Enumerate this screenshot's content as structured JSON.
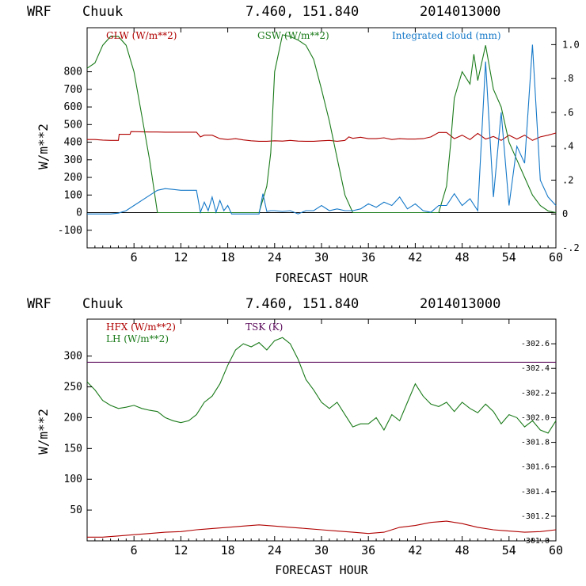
{
  "chart_data": [
    {
      "type": "line",
      "header": {
        "model": "WRF",
        "station": "Chuuk",
        "coords": "7.460, 151.840",
        "init": "2014013000"
      },
      "xlabel": "FORECAST HOUR",
      "ylabel": "W/m**2",
      "xlim": [
        0,
        60
      ],
      "ylim": [
        -200,
        1050
      ],
      "y2lim": [
        -0.2,
        1.1
      ],
      "xticks": [
        6,
        12,
        18,
        24,
        30,
        36,
        42,
        48,
        54,
        60
      ],
      "yticks": [
        -100,
        0,
        100,
        200,
        300,
        400,
        500,
        600,
        700,
        800
      ],
      "y2ticks": [
        "-.2",
        "0",
        ".2",
        ".4",
        ".6",
        ".8",
        "1.0"
      ],
      "y2tick_values": [
        -0.2,
        0,
        0.2,
        0.4,
        0.6,
        0.8,
        1.0
      ],
      "series": [
        {
          "name": "GLW (W/m**2)",
          "axis": "left",
          "color": "#b00000",
          "x": [
            0,
            1,
            2,
            3,
            4,
            4.1,
            5.5,
            5.6,
            8,
            9,
            10,
            11,
            12,
            13,
            14,
            14.5,
            15,
            16,
            17,
            18,
            19,
            20,
            21,
            22,
            23,
            24,
            25,
            26,
            27,
            28,
            29,
            30,
            31,
            32,
            33,
            33.5,
            34,
            35,
            36,
            37,
            38,
            39,
            40,
            41,
            42,
            43,
            43.5,
            44,
            45,
            46,
            47,
            48,
            49,
            50,
            51,
            52,
            53,
            54,
            55,
            56,
            57,
            58,
            59,
            60
          ],
          "values": [
            415,
            415,
            412,
            410,
            410,
            445,
            445,
            460,
            458,
            458,
            457,
            457,
            457,
            457,
            457,
            430,
            440,
            440,
            420,
            415,
            420,
            413,
            408,
            405,
            405,
            408,
            406,
            410,
            406,
            405,
            405,
            408,
            410,
            405,
            410,
            430,
            422,
            428,
            420,
            420,
            425,
            415,
            420,
            418,
            418,
            420,
            425,
            430,
            455,
            455,
            420,
            440,
            415,
            450,
            418,
            432,
            410,
            440,
            418,
            440,
            410,
            430,
            440,
            452
          ]
        },
        {
          "name": "GSW (W/m**2)",
          "axis": "left",
          "color": "#1a7a1a",
          "x": [
            0,
            1,
            2,
            3,
            4,
            5,
            6,
            7,
            8,
            9,
            10,
            11,
            12,
            13,
            14,
            15,
            16,
            17,
            18,
            19,
            20,
            21,
            22,
            23,
            23.5,
            24,
            25,
            26,
            27,
            28,
            29,
            30,
            31,
            32,
            33,
            34,
            35,
            36,
            37,
            38,
            39,
            40,
            41,
            42,
            43,
            44,
            44.5,
            45,
            46,
            46.5,
            47,
            48,
            49,
            49.5,
            50,
            51,
            52,
            53,
            54,
            55,
            56,
            57,
            58,
            59,
            60
          ],
          "values": [
            820,
            850,
            950,
            1000,
            1000,
            950,
            800,
            550,
            300,
            0,
            0,
            0,
            0,
            0,
            0,
            0,
            0,
            0,
            0,
            0,
            0,
            0,
            0,
            150,
            340,
            800,
            1010,
            1000,
            980,
            950,
            870,
            700,
            520,
            310,
            100,
            0,
            0,
            0,
            0,
            0,
            0,
            0,
            0,
            0,
            0,
            0,
            0,
            0,
            150,
            380,
            650,
            800,
            730,
            900,
            750,
            950,
            700,
            600,
            400,
            300,
            200,
            100,
            40,
            10,
            0
          ]
        },
        {
          "name": "Integrated cloud (mm)",
          "axis": "right",
          "color": "#1478c8",
          "x": [
            0,
            1,
            2,
            3,
            4,
            5,
            6,
            7,
            8,
            9,
            10,
            11,
            12,
            13,
            14,
            14.5,
            15,
            15.5,
            16,
            16.5,
            17,
            17.5,
            18,
            18.5,
            19,
            20,
            21,
            22,
            22.5,
            23,
            23.5,
            24,
            25,
            26,
            27,
            28,
            29,
            30,
            31,
            32,
            33,
            34,
            35,
            36,
            37,
            38,
            39,
            40,
            41,
            42,
            43,
            44,
            45,
            46,
            47,
            48,
            49,
            50,
            51,
            52,
            53,
            54,
            55,
            56,
            57,
            58,
            59,
            60
          ],
          "values": [
            0,
            0,
            0,
            0,
            0.005,
            0.02,
            0.05,
            0.08,
            0.11,
            0.14,
            0.15,
            0.145,
            0.14,
            0.14,
            0.14,
            0.01,
            0.07,
            0.02,
            0.1,
            0.01,
            0.08,
            0.02,
            0.05,
            0.0,
            0.0,
            0,
            0,
            0,
            0.12,
            0.015,
            0.02,
            0.02,
            0.015,
            0.02,
            0.0,
            0.02,
            0.02,
            0.05,
            0.02,
            0.03,
            0.02,
            0.02,
            0.03,
            0.06,
            0.04,
            0.07,
            0.05,
            0.1,
            0.03,
            0.06,
            0.02,
            0.01,
            0.05,
            0.05,
            0.12,
            0.05,
            0.09,
            0.02,
            0.9,
            0.1,
            0.6,
            0.05,
            0.4,
            0.3,
            1.0,
            0.2,
            0.1,
            0.05
          ]
        }
      ]
    },
    {
      "type": "line",
      "header": {
        "model": "WRF",
        "station": "Chuuk",
        "coords": "7.460, 151.840",
        "init": "2014013000"
      },
      "xlabel": "FORECAST HOUR",
      "ylabel": "W/m**2",
      "xlim": [
        0,
        60
      ],
      "ylim": [
        0,
        360
      ],
      "y2lim": [
        301.0,
        302.8
      ],
      "xticks": [
        6,
        12,
        18,
        24,
        30,
        36,
        42,
        48,
        54,
        60
      ],
      "yticks": [
        50,
        100,
        150,
        200,
        250,
        300
      ],
      "y2ticks": [
        "301.0",
        "301.2",
        "301.4",
        "301.6",
        "301.8",
        "302.0",
        "302.2",
        "302.4",
        "302.6"
      ],
      "y2tick_values": [
        301.0,
        301.2,
        301.4,
        301.6,
        301.8,
        302.0,
        302.2,
        302.4,
        302.6
      ],
      "series": [
        {
          "name": "HFX (W/m**2)",
          "axis": "left",
          "color": "#b00000",
          "x": [
            0,
            2,
            4,
            6,
            8,
            10,
            12,
            14,
            16,
            18,
            20,
            22,
            24,
            26,
            28,
            30,
            32,
            34,
            36,
            38,
            40,
            42,
            44,
            46,
            48,
            50,
            52,
            54,
            56,
            58,
            60
          ],
          "values": [
            6,
            6,
            8,
            10,
            12,
            14,
            15,
            18,
            20,
            22,
            24,
            26,
            24,
            22,
            20,
            18,
            16,
            14,
            12,
            14,
            22,
            25,
            30,
            32,
            28,
            22,
            18,
            16,
            14,
            15,
            18
          ]
        },
        {
          "name": "LH (W/m**2)",
          "axis": "left",
          "color": "#1a7a1a",
          "x": [
            0,
            1,
            2,
            3,
            4,
            5,
            6,
            7,
            8,
            9,
            10,
            11,
            12,
            13,
            14,
            15,
            16,
            17,
            18,
            19,
            20,
            21,
            22,
            23,
            24,
            25,
            26,
            27,
            28,
            29,
            30,
            31,
            32,
            33,
            34,
            35,
            36,
            37,
            38,
            39,
            40,
            41,
            42,
            43,
            44,
            45,
            46,
            47,
            48,
            49,
            50,
            51,
            52,
            53,
            54,
            55,
            56,
            57,
            58,
            59,
            60
          ],
          "values": [
            258,
            245,
            228,
            220,
            215,
            217,
            220,
            215,
            212,
            210,
            200,
            195,
            192,
            195,
            205,
            225,
            235,
            255,
            285,
            310,
            320,
            315,
            322,
            310,
            325,
            330,
            320,
            295,
            262,
            245,
            225,
            215,
            225,
            205,
            185,
            190,
            190,
            200,
            180,
            205,
            195,
            225,
            255,
            235,
            222,
            218,
            225,
            210,
            225,
            215,
            208,
            222,
            210,
            190,
            205,
            200,
            185,
            195,
            180,
            175,
            195
          ]
        },
        {
          "name": "TSK (K)",
          "axis": "right",
          "color": "#5a0a5a",
          "x": [
            0,
            60
          ],
          "values": [
            302.45,
            302.45
          ]
        }
      ]
    }
  ]
}
